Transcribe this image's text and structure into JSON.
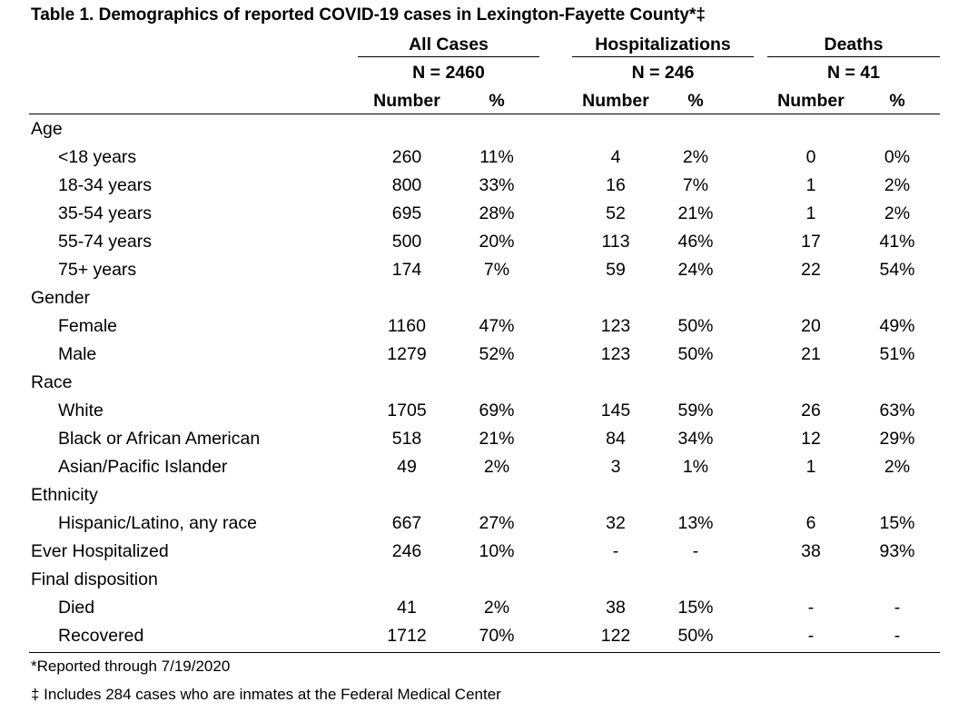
{
  "title": "Table 1. Demographics of reported COVID-19 cases in Lexington-Fayette County*‡",
  "groups": [
    {
      "label": "All Cases",
      "n": "N = 2460"
    },
    {
      "label": "Hospitalizations",
      "n": "N = 246"
    },
    {
      "label": "Deaths",
      "n": "N = 41"
    }
  ],
  "subheaders": {
    "number": "Number",
    "percent": "%"
  },
  "sections": [
    {
      "label": "Age",
      "rows": [
        {
          "label": "<18 years",
          "values": [
            "260",
            "11%",
            "4",
            "2%",
            "0",
            "0%"
          ]
        },
        {
          "label": "18-34 years",
          "values": [
            "800",
            "33%",
            "16",
            "7%",
            "1",
            "2%"
          ]
        },
        {
          "label": "35-54 years",
          "values": [
            "695",
            "28%",
            "52",
            "21%",
            "1",
            "2%"
          ]
        },
        {
          "label": "55-74 years",
          "values": [
            "500",
            "20%",
            "113",
            "46%",
            "17",
            "41%"
          ]
        },
        {
          "label": "75+ years",
          "values": [
            "174",
            "7%",
            "59",
            "24%",
            "22",
            "54%"
          ]
        }
      ]
    },
    {
      "label": "Gender",
      "rows": [
        {
          "label": "Female",
          "values": [
            "1160",
            "47%",
            "123",
            "50%",
            "20",
            "49%"
          ]
        },
        {
          "label": "Male",
          "values": [
            "1279",
            "52%",
            "123",
            "50%",
            "21",
            "51%"
          ]
        }
      ]
    },
    {
      "label": "Race",
      "rows": [
        {
          "label": "White",
          "values": [
            "1705",
            "69%",
            "145",
            "59%",
            "26",
            "63%"
          ]
        },
        {
          "label": "Black or African American",
          "values": [
            "518",
            "21%",
            "84",
            "34%",
            "12",
            "29%"
          ]
        },
        {
          "label": "Asian/Pacific Islander",
          "values": [
            "49",
            "2%",
            "3",
            "1%",
            "1",
            "2%"
          ]
        }
      ]
    },
    {
      "label": "Ethnicity",
      "rows": [
        {
          "label": "Hispanic/Latino, any race",
          "values": [
            "667",
            "27%",
            "32",
            "13%",
            "6",
            "15%"
          ]
        }
      ]
    },
    {
      "label": "Ever Hospitalized",
      "values": [
        "246",
        "10%",
        "-",
        "-",
        "38",
        "93%"
      ],
      "rows": []
    },
    {
      "label": "Final disposition",
      "rows": [
        {
          "label": "Died",
          "values": [
            "41",
            "2%",
            "38",
            "15%",
            "-",
            "-"
          ]
        },
        {
          "label": "Recovered",
          "values": [
            "1712",
            "70%",
            "122",
            "50%",
            "-",
            "-"
          ]
        }
      ]
    }
  ],
  "footnotes": [
    "*Reported through 7/19/2020",
    "‡ Includes 284 cases who are inmates at the Federal Medical Center"
  ]
}
